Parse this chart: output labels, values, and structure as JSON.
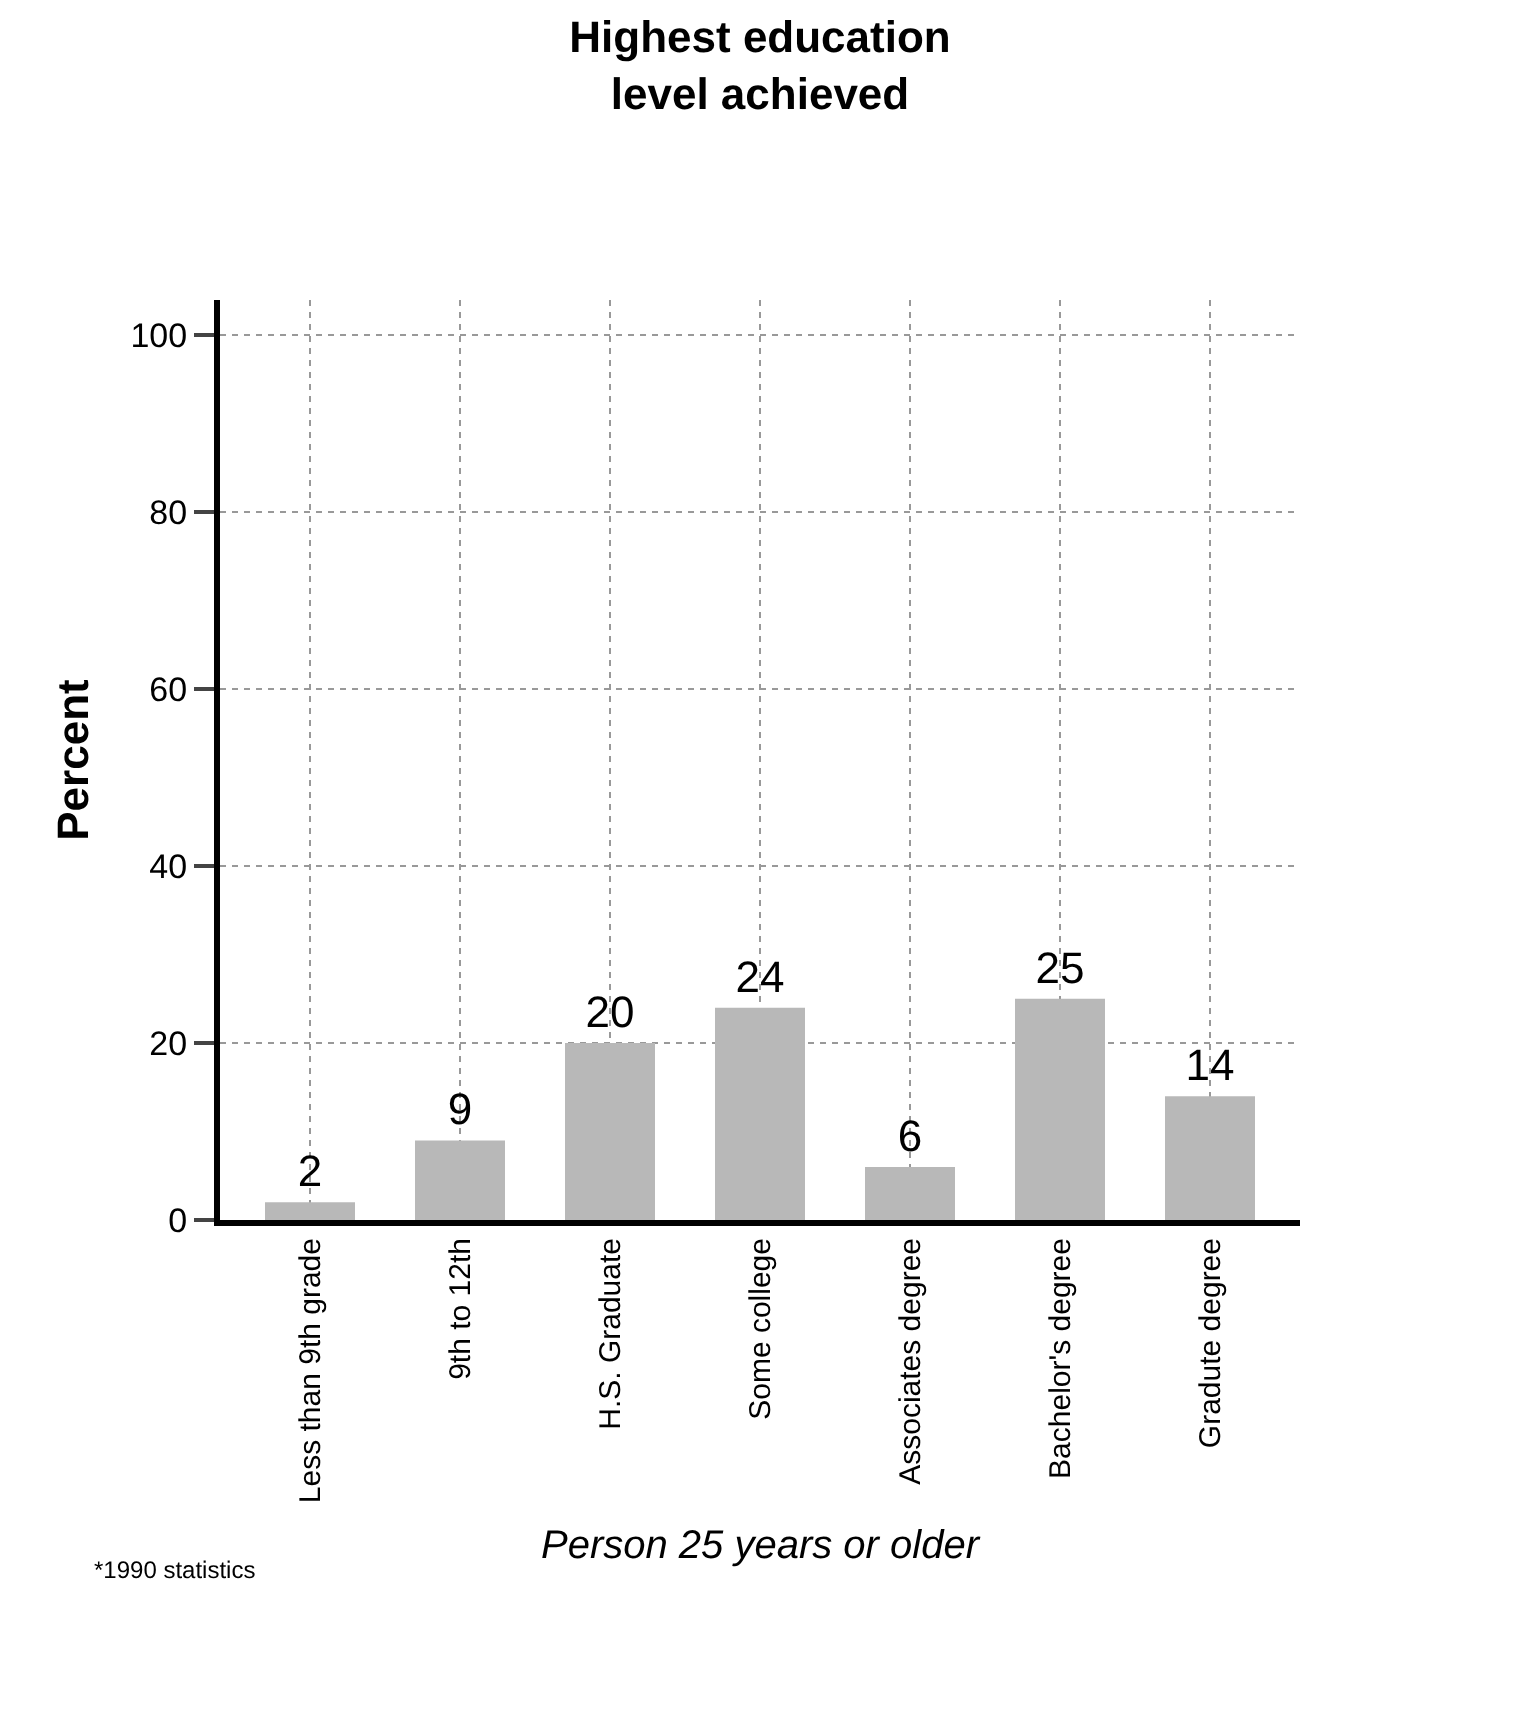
{
  "chart_data": {
    "type": "bar",
    "title": "Highest education level achieved",
    "ylabel": "Percent",
    "xlabel": "Person 25 years or older",
    "categories": [
      "Less than 9th grade",
      "9th to 12th",
      "H.S. Graduate",
      "Some college",
      "Associates degree",
      "Bachelor's degree",
      "Gradute degree"
    ],
    "values": [
      2,
      9,
      20,
      24,
      6,
      25,
      14
    ],
    "color": "#b8b8b8",
    "ylim": [
      0,
      104
    ],
    "yticks": [
      0,
      20,
      40,
      60,
      80,
      100
    ],
    "grid": true,
    "data_labels": true,
    "annotations": [
      "*1990 statistics"
    ]
  }
}
